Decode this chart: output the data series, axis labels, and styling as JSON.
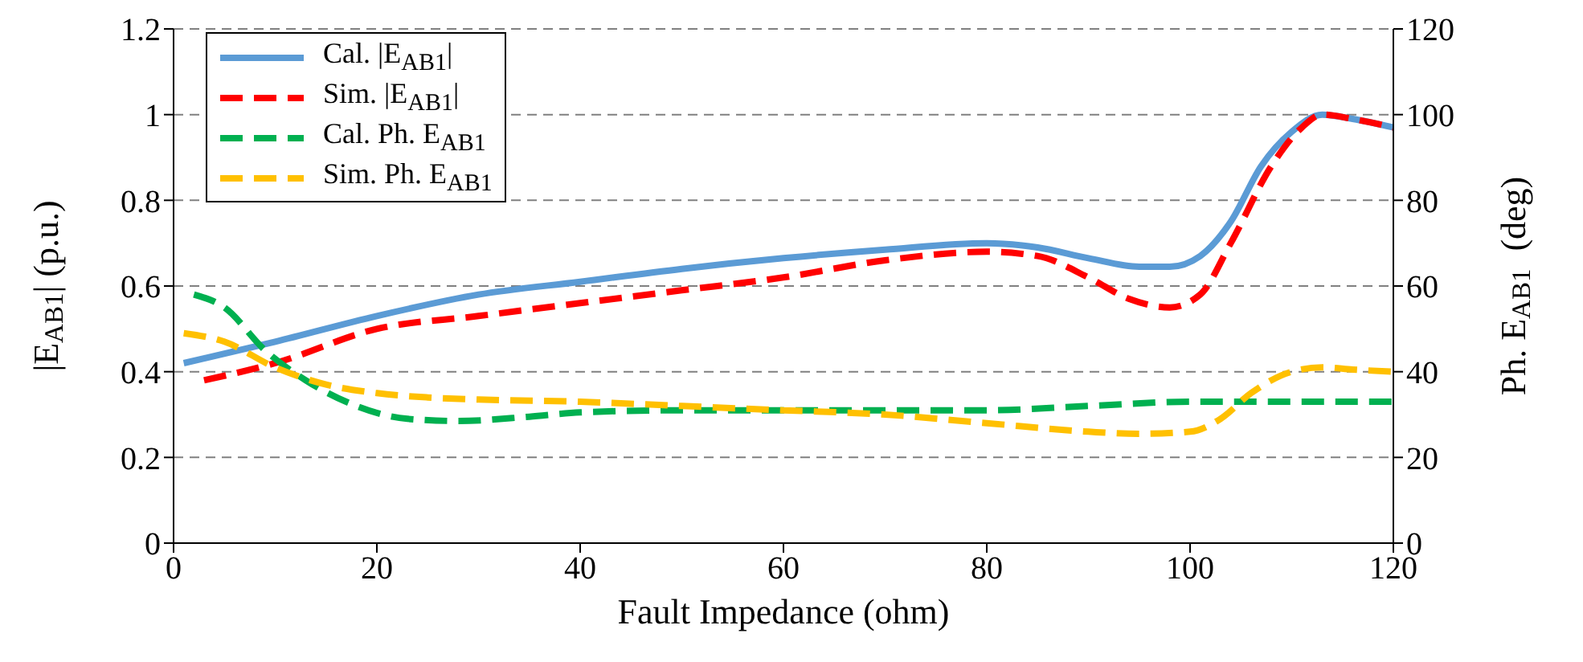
{
  "chart_data": {
    "type": "line",
    "xlabel": "Fault Impedance (ohm)",
    "ylabel": "|E$_{AB1}$| (p.u.)",
    "y2label": "Ph. E$_{AB1}$  (deg)",
    "xlim": [
      0,
      120
    ],
    "xticks": [
      0,
      20,
      40,
      60,
      80,
      100,
      120
    ],
    "ylim": [
      0,
      1.2
    ],
    "yticks": [
      0,
      0.2,
      0.4,
      0.6,
      0.8,
      1,
      1.2
    ],
    "y2lim": [
      0,
      120
    ],
    "y2ticks": [
      0,
      20,
      40,
      60,
      80,
      100,
      120
    ],
    "grid": "y",
    "legend": "top left",
    "marker": "none",
    "series": [
      {
        "name": "Cal. |E$_{AB1}$|",
        "color": "#5b9bd5",
        "line_style": "solid",
        "x": [
          1,
          10,
          20,
          30,
          40,
          50,
          60,
          70,
          80,
          85,
          90,
          95,
          98,
          101,
          104,
          107,
          110,
          113,
          116,
          120
        ],
        "values": [
          0.42,
          0.47,
          0.53,
          0.58,
          0.61,
          0.64,
          0.665,
          0.685,
          0.7,
          0.69,
          0.665,
          0.645,
          0.645,
          0.67,
          0.75,
          0.88,
          0.96,
          1.0,
          0.99,
          0.97
        ]
      },
      {
        "name": "Sim. |E$_{AB1}$|",
        "color": "#ff0000",
        "line_style": "dashed",
        "x": [
          3,
          10,
          20,
          30,
          40,
          50,
          60,
          70,
          80,
          85,
          90,
          94,
          98,
          101,
          104,
          108,
          111,
          113,
          116,
          120
        ],
        "values": [
          0.38,
          0.42,
          0.5,
          0.53,
          0.56,
          0.59,
          0.62,
          0.66,
          0.68,
          0.67,
          0.62,
          0.57,
          0.55,
          0.58,
          0.7,
          0.88,
          0.97,
          1.0,
          0.99,
          0.97
        ]
      },
      {
        "name": "Cal. Ph. E$_{AB1}$",
        "color": "#00b050",
        "line_style": "dashed",
        "axis": "y2",
        "x": [
          2,
          5,
          9,
          13,
          18,
          23,
          28,
          35,
          40,
          50,
          60,
          80,
          90,
          100,
          110,
          120
        ],
        "values": [
          58,
          55,
          45,
          38,
          32,
          29,
          28.5,
          29.5,
          30.5,
          31,
          31,
          31,
          32,
          33,
          33,
          33
        ]
      },
      {
        "name": "Sim. Ph. E$_{AB1}$",
        "color": "#ffc000",
        "line_style": "dashed",
        "axis": "y2",
        "x": [
          1,
          5,
          10,
          15,
          20,
          25,
          30,
          40,
          50,
          60,
          70,
          80,
          90,
          95,
          100,
          103,
          106,
          110,
          113,
          116,
          120
        ],
        "values": [
          49,
          47,
          41,
          37,
          35,
          34,
          33.5,
          33,
          32,
          31,
          30,
          28,
          26,
          25.5,
          26,
          29,
          35,
          40,
          41,
          40.5,
          40
        ]
      }
    ]
  }
}
